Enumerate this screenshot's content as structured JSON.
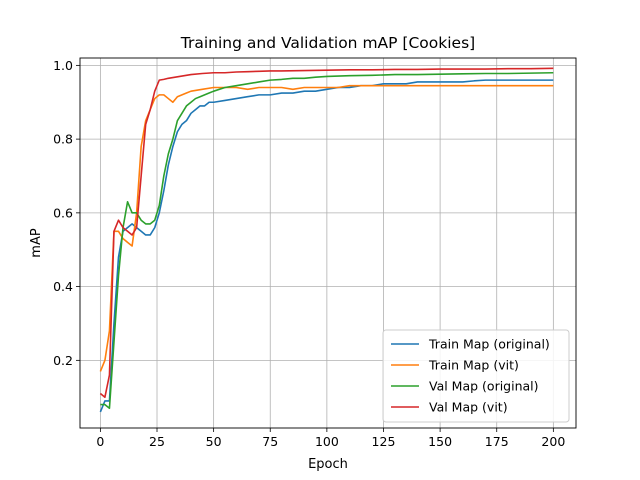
{
  "chart_data": {
    "type": "line",
    "title": "Training and Validation mAP [Cookies]",
    "xlabel": "Epoch",
    "ylabel": "mAP",
    "xlim": [
      -9,
      210
    ],
    "ylim": [
      0.0165,
      1.02
    ],
    "xticks": [
      0,
      25,
      50,
      75,
      100,
      125,
      150,
      175,
      200
    ],
    "yticks": [
      0.2,
      0.4,
      0.6,
      0.8,
      1.0
    ],
    "ytick_labels": [
      "0.2",
      "0.4",
      "0.6",
      "0.8",
      "1.0"
    ],
    "grid": true,
    "legend_position": "lower-right",
    "series": [
      {
        "name": "Train Map (original)",
        "color": "#1f77b4",
        "points": [
          [
            0,
            0.06
          ],
          [
            2,
            0.09
          ],
          [
            4,
            0.09
          ],
          [
            6,
            0.3
          ],
          [
            8,
            0.48
          ],
          [
            10,
            0.55
          ],
          [
            12,
            0.56
          ],
          [
            14,
            0.57
          ],
          [
            16,
            0.56
          ],
          [
            18,
            0.55
          ],
          [
            20,
            0.54
          ],
          [
            22,
            0.54
          ],
          [
            24,
            0.56
          ],
          [
            26,
            0.6
          ],
          [
            28,
            0.66
          ],
          [
            30,
            0.73
          ],
          [
            32,
            0.78
          ],
          [
            34,
            0.82
          ],
          [
            36,
            0.84
          ],
          [
            38,
            0.85
          ],
          [
            40,
            0.87
          ],
          [
            42,
            0.88
          ],
          [
            44,
            0.89
          ],
          [
            46,
            0.89
          ],
          [
            48,
            0.9
          ],
          [
            50,
            0.9
          ],
          [
            55,
            0.905
          ],
          [
            60,
            0.91
          ],
          [
            65,
            0.915
          ],
          [
            70,
            0.92
          ],
          [
            75,
            0.92
          ],
          [
            80,
            0.925
          ],
          [
            85,
            0.925
          ],
          [
            90,
            0.93
          ],
          [
            95,
            0.93
          ],
          [
            100,
            0.935
          ],
          [
            105,
            0.94
          ],
          [
            110,
            0.94
          ],
          [
            115,
            0.945
          ],
          [
            120,
            0.945
          ],
          [
            125,
            0.95
          ],
          [
            130,
            0.95
          ],
          [
            135,
            0.95
          ],
          [
            140,
            0.955
          ],
          [
            145,
            0.955
          ],
          [
            150,
            0.955
          ],
          [
            155,
            0.955
          ],
          [
            160,
            0.955
          ],
          [
            165,
            0.958
          ],
          [
            170,
            0.96
          ],
          [
            175,
            0.96
          ],
          [
            180,
            0.96
          ],
          [
            185,
            0.96
          ],
          [
            190,
            0.96
          ],
          [
            195,
            0.96
          ],
          [
            200,
            0.96
          ]
        ]
      },
      {
        "name": "Train Map (vit)",
        "color": "#ff7f0e",
        "points": [
          [
            0,
            0.17
          ],
          [
            2,
            0.2
          ],
          [
            4,
            0.28
          ],
          [
            6,
            0.55
          ],
          [
            8,
            0.55
          ],
          [
            10,
            0.53
          ],
          [
            12,
            0.52
          ],
          [
            14,
            0.51
          ],
          [
            16,
            0.6
          ],
          [
            18,
            0.78
          ],
          [
            20,
            0.85
          ],
          [
            22,
            0.88
          ],
          [
            24,
            0.91
          ],
          [
            26,
            0.92
          ],
          [
            28,
            0.92
          ],
          [
            30,
            0.91
          ],
          [
            32,
            0.9
          ],
          [
            34,
            0.915
          ],
          [
            36,
            0.92
          ],
          [
            38,
            0.925
          ],
          [
            40,
            0.93
          ],
          [
            45,
            0.935
          ],
          [
            50,
            0.94
          ],
          [
            55,
            0.94
          ],
          [
            60,
            0.94
          ],
          [
            65,
            0.935
          ],
          [
            70,
            0.94
          ],
          [
            75,
            0.94
          ],
          [
            80,
            0.94
          ],
          [
            85,
            0.935
          ],
          [
            90,
            0.94
          ],
          [
            95,
            0.94
          ],
          [
            100,
            0.94
          ],
          [
            105,
            0.94
          ],
          [
            110,
            0.945
          ],
          [
            115,
            0.945
          ],
          [
            120,
            0.945
          ],
          [
            125,
            0.945
          ],
          [
            130,
            0.945
          ],
          [
            135,
            0.945
          ],
          [
            140,
            0.945
          ],
          [
            145,
            0.945
          ],
          [
            150,
            0.945
          ],
          [
            155,
            0.945
          ],
          [
            160,
            0.945
          ],
          [
            165,
            0.945
          ],
          [
            170,
            0.945
          ],
          [
            175,
            0.945
          ],
          [
            180,
            0.945
          ],
          [
            185,
            0.945
          ],
          [
            190,
            0.945
          ],
          [
            195,
            0.945
          ],
          [
            200,
            0.945
          ]
        ]
      },
      {
        "name": "Val Map (original)",
        "color": "#2ca02c",
        "points": [
          [
            0,
            0.08
          ],
          [
            2,
            0.08
          ],
          [
            4,
            0.07
          ],
          [
            6,
            0.25
          ],
          [
            8,
            0.43
          ],
          [
            10,
            0.56
          ],
          [
            12,
            0.63
          ],
          [
            14,
            0.6
          ],
          [
            16,
            0.6
          ],
          [
            18,
            0.58
          ],
          [
            20,
            0.57
          ],
          [
            22,
            0.57
          ],
          [
            24,
            0.58
          ],
          [
            26,
            0.62
          ],
          [
            28,
            0.7
          ],
          [
            30,
            0.76
          ],
          [
            32,
            0.8
          ],
          [
            34,
            0.85
          ],
          [
            36,
            0.87
          ],
          [
            38,
            0.89
          ],
          [
            40,
            0.9
          ],
          [
            42,
            0.91
          ],
          [
            44,
            0.915
          ],
          [
            46,
            0.92
          ],
          [
            48,
            0.925
          ],
          [
            50,
            0.93
          ],
          [
            55,
            0.94
          ],
          [
            60,
            0.945
          ],
          [
            65,
            0.95
          ],
          [
            70,
            0.955
          ],
          [
            75,
            0.96
          ],
          [
            80,
            0.962
          ],
          [
            85,
            0.965
          ],
          [
            90,
            0.965
          ],
          [
            95,
            0.968
          ],
          [
            100,
            0.97
          ],
          [
            110,
            0.972
          ],
          [
            120,
            0.973
          ],
          [
            130,
            0.975
          ],
          [
            140,
            0.975
          ],
          [
            150,
            0.976
          ],
          [
            160,
            0.977
          ],
          [
            170,
            0.978
          ],
          [
            180,
            0.978
          ],
          [
            190,
            0.979
          ],
          [
            200,
            0.98
          ]
        ]
      },
      {
        "name": "Val Map (vit)",
        "color": "#d62728",
        "points": [
          [
            0,
            0.11
          ],
          [
            2,
            0.1
          ],
          [
            4,
            0.16
          ],
          [
            6,
            0.55
          ],
          [
            8,
            0.58
          ],
          [
            10,
            0.56
          ],
          [
            12,
            0.55
          ],
          [
            14,
            0.54
          ],
          [
            16,
            0.56
          ],
          [
            18,
            0.7
          ],
          [
            20,
            0.84
          ],
          [
            22,
            0.88
          ],
          [
            24,
            0.93
          ],
          [
            26,
            0.96
          ],
          [
            28,
            0.962
          ],
          [
            30,
            0.965
          ],
          [
            35,
            0.97
          ],
          [
            40,
            0.975
          ],
          [
            45,
            0.978
          ],
          [
            50,
            0.98
          ],
          [
            55,
            0.98
          ],
          [
            60,
            0.982
          ],
          [
            65,
            0.983
          ],
          [
            70,
            0.984
          ],
          [
            75,
            0.985
          ],
          [
            80,
            0.985
          ],
          [
            90,
            0.986
          ],
          [
            100,
            0.987
          ],
          [
            110,
            0.988
          ],
          [
            120,
            0.988
          ],
          [
            130,
            0.989
          ],
          [
            140,
            0.989
          ],
          [
            150,
            0.99
          ],
          [
            160,
            0.99
          ],
          [
            170,
            0.99
          ],
          [
            180,
            0.991
          ],
          [
            190,
            0.991
          ],
          [
            200,
            0.992
          ]
        ]
      }
    ]
  }
}
